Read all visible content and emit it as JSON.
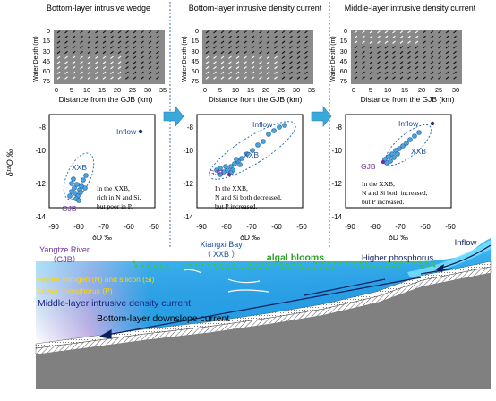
{
  "panels": [
    {
      "title": "Bottom-layer intrusive wedge",
      "x_ticks": [
        "0",
        "5",
        "10",
        "15",
        "20",
        "25",
        "30",
        "35"
      ],
      "y_ticks": [
        "0",
        "15",
        "30",
        "45",
        "60",
        "75"
      ],
      "x_label": "Distance from the GJB  (km)",
      "inflow": "Inflow",
      "cluster_label": "XXB",
      "gjb_label": "GJB",
      "note": [
        "In the XXB,",
        "rich in N and Si,",
        "but poor in P."
      ],
      "scatter_x_ticks": [
        "-90",
        "-80",
        "-70",
        "-60",
        "-50"
      ],
      "scatter_y_ticks": [
        "-8",
        "-10",
        "-12",
        "-14"
      ]
    },
    {
      "title": "Bottom-layer intrusive density current",
      "x_ticks": [
        "0",
        "5",
        "10",
        "15",
        "20",
        "25",
        "30",
        "35"
      ],
      "y_ticks": [
        "0",
        "15",
        "30",
        "45",
        "60",
        "75"
      ],
      "x_label": "Distance from the GJB  (km)",
      "inflow": "Inflow",
      "cluster_label": "XXB",
      "gjb_label": "GJB",
      "note": [
        "In the XXB,",
        "N and Si both decreased,",
        "but  P increased."
      ],
      "scatter_x_ticks": [
        "-90",
        "-80",
        "-70",
        "-60",
        "-50"
      ],
      "scatter_y_ticks": [
        "-8",
        "-10",
        "-12",
        "-14"
      ]
    },
    {
      "title": "Middle-layer intrusive density current",
      "x_ticks": [
        "0",
        "5",
        "10",
        "15",
        "20",
        "25",
        "30"
      ],
      "y_ticks": [
        "0",
        "15",
        "30",
        "45",
        "60",
        "75"
      ],
      "x_label": "Distance from the GJB  (km)",
      "inflow": "Inflow",
      "cluster_label": "XXB",
      "gjb_label": "GJB",
      "note": [
        "In the XXB,",
        "N and Si both increased,",
        "but  P increased."
      ],
      "scatter_x_ticks": [
        "-90",
        "-80",
        "-70",
        "-60",
        "-50"
      ],
      "scatter_y_ticks": [
        "-8",
        "-10",
        "-12",
        "-14"
      ]
    }
  ],
  "y_axis_label_top": "Water Depth (m)",
  "y_axis_label_scatter": "δ¹⁸O ‰",
  "x_axis_label_scatter": "δD ‰",
  "bottom": {
    "yangtze": "Yangtze River",
    "gjb": "（GJB）",
    "xiangxi": "Xiangxi Bay",
    "xxb": "（ XXB ）",
    "algal": "algal blooms",
    "inflow": "Inflow",
    "higher_p": "Higher phosphorus",
    "higher_n": "Higher nitrogen (N) and silicon (Si)",
    "lower_p": "Lower  phosphorus (P)",
    "middle_current": "Middle-layer intrusive density current",
    "bottom_current": "Bottom-layer downslope current"
  },
  "colors": {
    "purple_text": "#7030a0",
    "blue_text": "#1f4e9c",
    "green_text": "#2aa02a",
    "yellow_text": "#ffd700",
    "arrow_blue": "#3aa8d8"
  }
}
